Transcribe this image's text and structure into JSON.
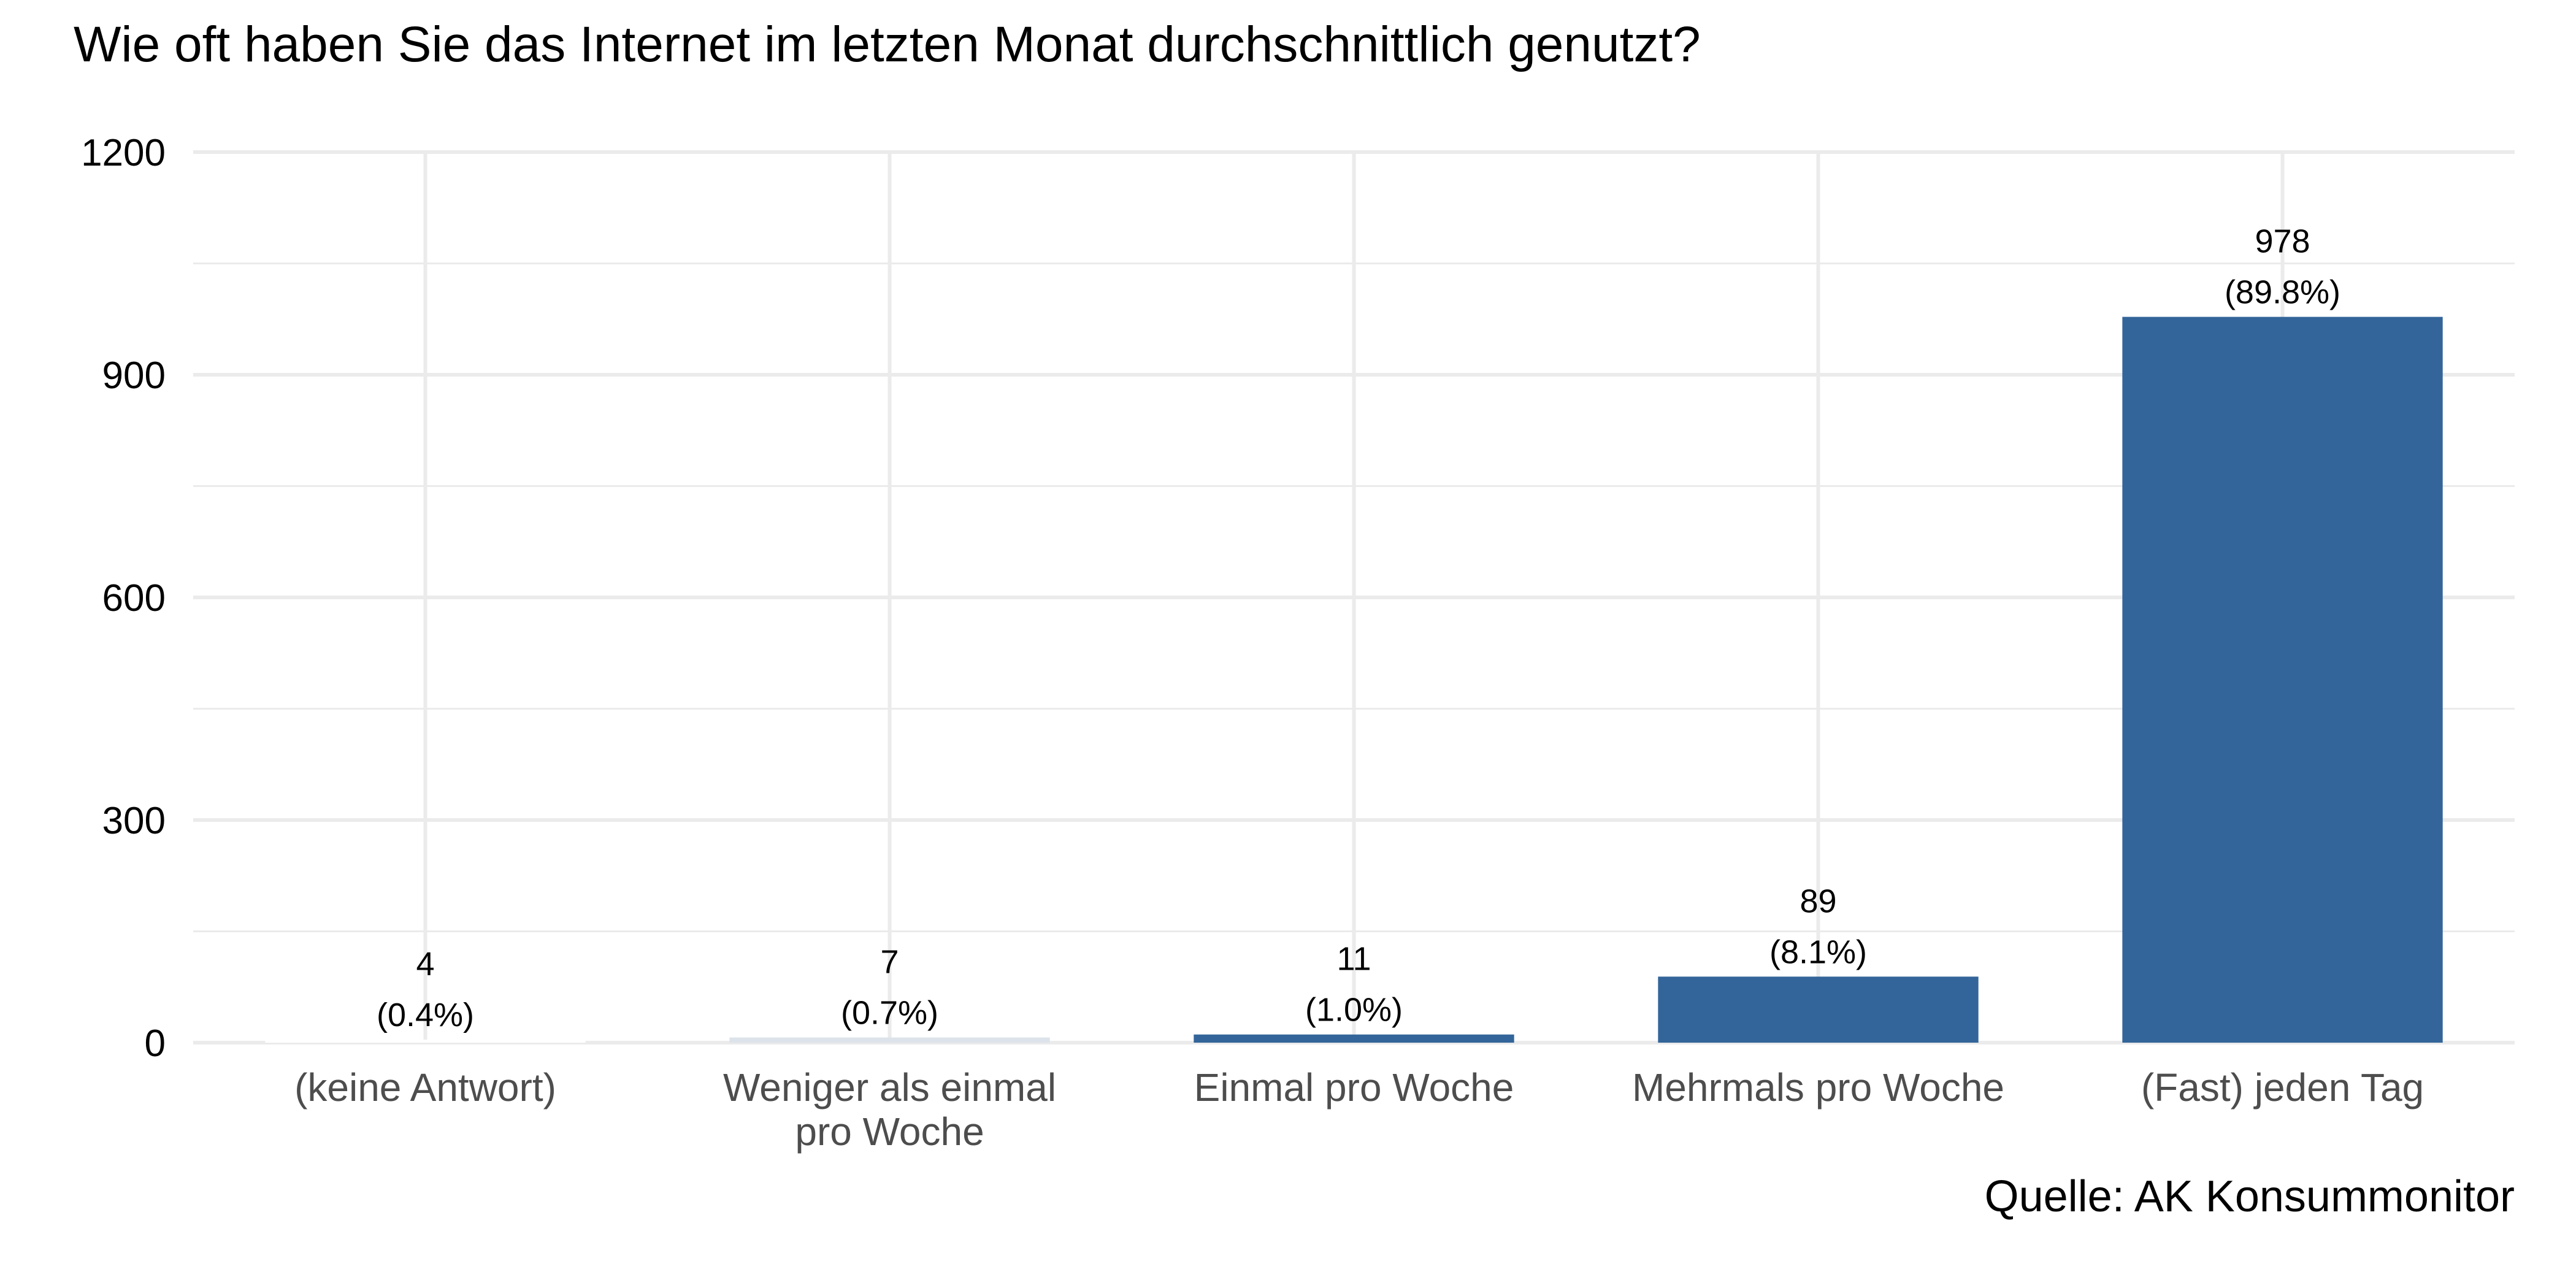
{
  "chart_data": {
    "type": "bar",
    "title": "Wie oft haben Sie das Internet im letzten Monat durchschnittlich genutzt?",
    "caption": "Quelle: AK Konsummonitor",
    "xlabel": "",
    "ylabel": "",
    "ylim": [
      0,
      1200
    ],
    "yticks": [
      "0",
      "300",
      "600",
      "900",
      "1200"
    ],
    "ytick_values": [
      0,
      300,
      600,
      900,
      1200
    ],
    "categories": [
      [
        "(keine Antwort)"
      ],
      [
        "Weniger als einmal",
        "pro Woche"
      ],
      [
        "Einmal pro Woche"
      ],
      [
        "Mehrmals pro Woche"
      ],
      [
        "(Fast) jeden Tag"
      ]
    ],
    "values": [
      4,
      7,
      11,
      89,
      978
    ],
    "count_labels": [
      "4",
      "7",
      "11",
      "89",
      "978"
    ],
    "percent_labels": [
      "(0.4%)",
      "(0.7%)",
      "(1.0%)",
      "(8.1%)",
      "(89.8%)"
    ],
    "bar_colors": [
      "#ffffff",
      "#dde3ea",
      "#33659a",
      "#33659a",
      "#33659a"
    ],
    "grid": true
  }
}
